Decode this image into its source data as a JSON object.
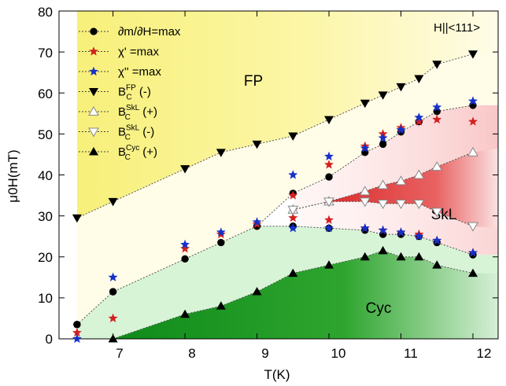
{
  "chart_data": {
    "type": "scatter",
    "xlabel": "T(K)",
    "ylabel": "μ0H(mT)",
    "xlim": [
      6.25,
      12.35
    ],
    "ylim": [
      0,
      80
    ],
    "xticks": [
      "7",
      "8",
      "9",
      "10",
      "11",
      "12"
    ],
    "yticks": [
      "0",
      "10",
      "20",
      "30",
      "40",
      "50",
      "60",
      "70",
      "80"
    ],
    "annotations": [
      "H||<111>",
      "FP",
      "SkL",
      "Cyc"
    ],
    "legend_position": "top-left",
    "colors": {
      "fp": "#fbf58a",
      "skl": "#e53535",
      "cyc": "#2aa52a",
      "chi1": "#d42020",
      "chi2": "#1530c8"
    },
    "legend": [
      {
        "marker": "circle",
        "main": "∂m/∂H=max",
        "sup": "",
        "sub": "",
        "suffix": ""
      },
      {
        "marker": "star-red",
        "main": "χ' =max",
        "sup": "",
        "sub": "",
        "suffix": ""
      },
      {
        "marker": "star-blue",
        "main": "χ'' =max",
        "sup": "",
        "sub": "",
        "suffix": ""
      },
      {
        "marker": "tri-down-filled",
        "main": "B",
        "sup": "FP",
        "sub": "C",
        "suffix": "(-)"
      },
      {
        "marker": "tri-up-open",
        "main": "B",
        "sup": "SkL",
        "sub": "C",
        "suffix": "(+)"
      },
      {
        "marker": "tri-down-open",
        "main": "B",
        "sup": "SkL",
        "sub": "C",
        "suffix": "(-)"
      },
      {
        "marker": "tri-up-filled",
        "main": "B",
        "sup": "Cyc",
        "sub": "C",
        "suffix": "(+)"
      }
    ],
    "series": [
      {
        "name": "∂m/∂H=max",
        "marker": "circle",
        "x": [
          6.5,
          7,
          8,
          8.5,
          9,
          9.5,
          10,
          10.5,
          10.75,
          11,
          11.25,
          11.5,
          12,
          6.5,
          7,
          9,
          9.5,
          10,
          10.5,
          10.75,
          11,
          11.25,
          11.5,
          12
        ],
        "y": [
          3.5,
          11.5,
          19.5,
          23.5,
          27.5,
          35.5,
          39.5,
          45.5,
          47.5,
          50.5,
          53,
          55.5,
          57,
          3.5,
          11.5,
          27.5,
          27.5,
          27,
          26.5,
          25.5,
          25.5,
          25,
          23.5,
          20.5
        ]
      },
      {
        "name": "χ' =max",
        "marker": "star-red",
        "x": [
          6.5,
          7,
          8,
          8.5,
          9,
          9.5,
          9.5,
          10,
          10,
          10.5,
          10.5,
          10.75,
          10.75,
          11,
          11,
          11.25,
          11.25,
          11.5,
          11.5,
          12,
          12
        ],
        "y": [
          1.5,
          5,
          22,
          25.5,
          28,
          35,
          29.5,
          42.5,
          29,
          47,
          27,
          50,
          26.5,
          51.5,
          26,
          53,
          25.5,
          53.5,
          24,
          53,
          21
        ]
      },
      {
        "name": "χ'' =max",
        "marker": "star-blue",
        "x": [
          6.5,
          7,
          8,
          8.5,
          9,
          9.5,
          9.5,
          10,
          10,
          10.5,
          10.5,
          10.75,
          10.75,
          11,
          11,
          11.25,
          11.25,
          11.5,
          11.5,
          12,
          12
        ],
        "y": [
          0,
          15,
          23,
          26,
          28.5,
          40,
          27,
          44.5,
          27,
          46.5,
          27,
          49,
          26.5,
          51,
          26,
          54,
          25,
          56.5,
          24,
          58,
          21
        ]
      },
      {
        "name": "B_C^FP(-)",
        "marker": "tri-down-filled",
        "line": true,
        "x": [
          6.5,
          7,
          8,
          8.5,
          9,
          9.5,
          10,
          10.5,
          10.75,
          11,
          11.25,
          11.5,
          12
        ],
        "y": [
          29.5,
          33.5,
          41.5,
          45.5,
          47.5,
          49.5,
          53.5,
          57.5,
          59.5,
          61.5,
          63.5,
          67,
          69.5
        ]
      },
      {
        "name": "B_C^SkL(+)",
        "marker": "tri-up-open",
        "line": true,
        "x": [
          9.5,
          10,
          10.5,
          10.75,
          11,
          11.25,
          11.5,
          12
        ],
        "y": [
          31.5,
          33.5,
          36,
          37.5,
          38.5,
          40,
          42,
          45.5
        ]
      },
      {
        "name": "B_C^SkL(-)",
        "marker": "tri-down-open",
        "line": true,
        "x": [
          9.5,
          10,
          10.5,
          10.75,
          11,
          11.25,
          11.5,
          12
        ],
        "y": [
          31.5,
          33.5,
          33.5,
          33,
          33,
          33,
          31,
          27.5
        ]
      },
      {
        "name": "B_C^Cyc(+)",
        "marker": "tri-up-filled",
        "line": true,
        "x": [
          7,
          8,
          8.5,
          9,
          9.5,
          10,
          10.5,
          10.75,
          11,
          11.25,
          11.5,
          12
        ],
        "y": [
          0,
          6,
          8,
          11.5,
          16,
          18,
          20,
          21.5,
          20,
          20,
          18,
          16
        ]
      },
      {
        "name": "",
        "marker": "none",
        "line": true,
        "x": [
          6.5,
          7,
          8,
          8.5,
          9,
          9.5,
          10,
          10.5,
          10.75,
          11,
          11.25,
          11.5,
          12
        ],
        "y": [
          3.5,
          11.5,
          19.5,
          23.5,
          27.5,
          35.5,
          39.5,
          45.5,
          47.5,
          50.5,
          53,
          55.5,
          57
        ]
      },
      {
        "name": "",
        "marker": "none",
        "line": true,
        "x": [
          9,
          9.5,
          10,
          10.5,
          10.75,
          11,
          11.25,
          11.5,
          12
        ],
        "y": [
          27.5,
          27.5,
          27,
          26.5,
          25.5,
          25.5,
          25,
          23.5,
          20.5
        ]
      }
    ]
  }
}
